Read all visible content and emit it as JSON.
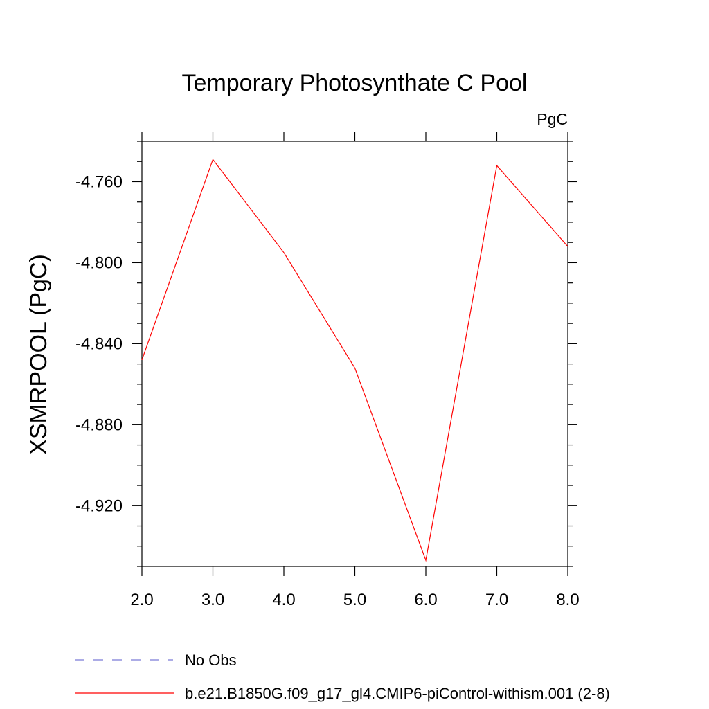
{
  "chart_data": {
    "type": "line",
    "title": "Temporary Photosynthate C Pool",
    "units_label": "PgC",
    "xlabel": "",
    "ylabel": "XSMRPOOL  (PgC)",
    "xlim": [
      2.0,
      8.0
    ],
    "ylim": [
      -4.95,
      -4.74
    ],
    "x_ticks": [
      "2.0",
      "3.0",
      "4.0",
      "5.0",
      "6.0",
      "7.0",
      "8.0"
    ],
    "y_ticks": [
      "-4.760",
      "-4.800",
      "-4.840",
      "-4.880",
      "-4.920"
    ],
    "grid": false,
    "legend_position": "bottom-left",
    "x": [
      2.0,
      3.0,
      4.0,
      5.0,
      6.0,
      7.0,
      8.0
    ],
    "series": [
      {
        "name": "b.e21.B1850G.f09_g17_gl4.CMIP6-piControl-withism.001 (2-8)",
        "color": "#ff0000",
        "line_style": "solid",
        "values": [
          -4.848,
          -4.749,
          -4.795,
          -4.852,
          -4.947,
          -4.752,
          -4.792
        ]
      }
    ],
    "legend": [
      {
        "label": "No Obs",
        "color": "#7b7bd6",
        "line_style": "dashed"
      },
      {
        "label": "b.e21.B1850G.f09_g17_gl4.CMIP6-piControl-withism.001 (2-8)",
        "color": "#ff0000",
        "line_style": "solid"
      }
    ]
  }
}
